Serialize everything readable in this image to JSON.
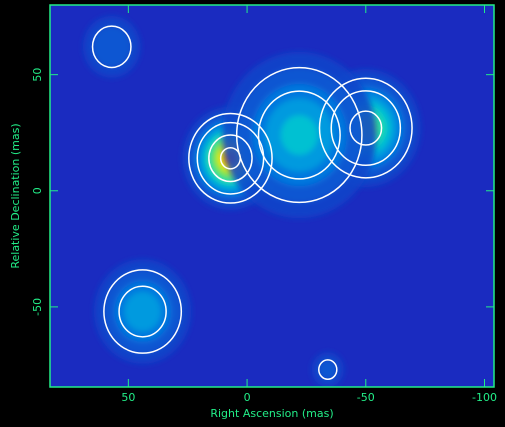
{
  "chart_data": {
    "type": "image",
    "x_label": "Right Ascension  (mas)",
    "y_label": "Relative Declination  (mas)",
    "xlim": [
      83,
      -104
    ],
    "ylim": [
      -84.5,
      80
    ],
    "xticks": [
      50,
      0,
      -50,
      -100
    ],
    "yticks": [
      50,
      0,
      -50
    ],
    "sources": [
      {
        "x": 7,
        "y": 14,
        "amp": 1.0,
        "size": 9
      },
      {
        "x": -50,
        "y": 27,
        "amp": 0.72,
        "size": 11
      },
      {
        "x": -22,
        "y": 24,
        "amp": 0.5,
        "size": 17
      },
      {
        "x": 44,
        "y": -52,
        "amp": 0.45,
        "size": 11
      },
      {
        "x": 57,
        "y": 62,
        "amp": 0.25,
        "size": 8
      },
      {
        "x": -34,
        "y": -77,
        "amp": 0.2,
        "size": 5
      }
    ],
    "contour_levels": [
      0.15,
      0.3,
      0.6,
      0.9
    ],
    "axis_color": "#22ee88",
    "background_color": "#1a2bc0",
    "contour_color": "#ffffff"
  }
}
